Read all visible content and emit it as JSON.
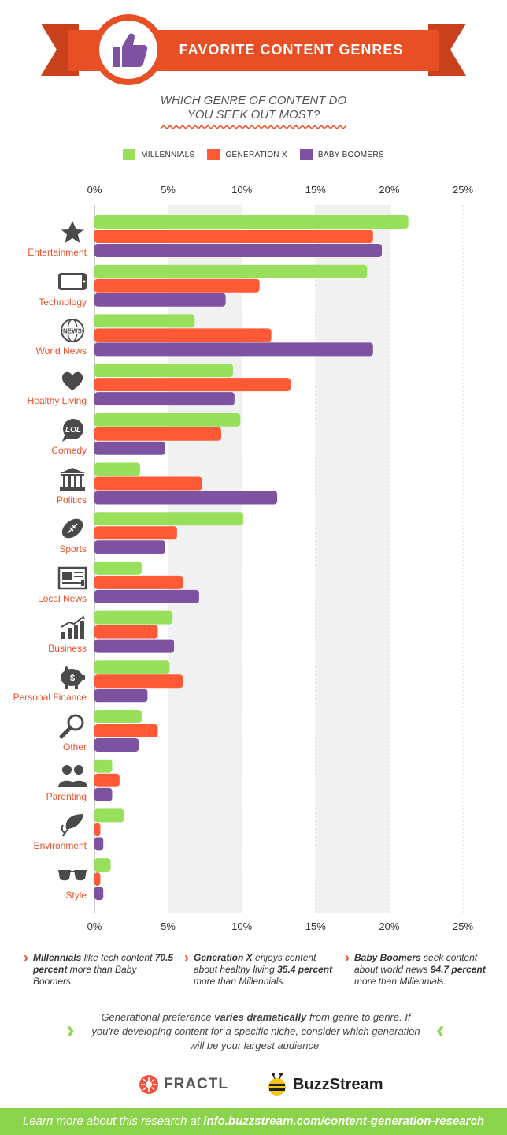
{
  "header": {
    "title": "FAVORITE CONTENT GENRES",
    "subtitle_line1": "WHICH GENRE OF CONTENT DO",
    "subtitle_line2": "YOU SEEK OUT MOST?"
  },
  "colors": {
    "millennials": "#98e05c",
    "generation_x": "#ff5a35",
    "baby_boomers": "#7d52a0",
    "banner": "#e84f25",
    "accent_label": "#e8502a",
    "footer_green": "#8bd34a"
  },
  "chart_data": {
    "type": "bar",
    "orientation": "horizontal",
    "title": "FAVORITE CONTENT GENRES",
    "subtitle": "WHICH GENRE OF CONTENT DO YOU SEEK OUT MOST?",
    "categories": [
      "Entertainment",
      "Technology",
      "World News",
      "Healthy Living",
      "Comedy",
      "Politics",
      "Sports",
      "Local News",
      "Business",
      "Personal Finance",
      "Other",
      "Parenting",
      "Environment",
      "Style"
    ],
    "icons": [
      "star-icon",
      "tablet-icon",
      "globe-news-icon",
      "heart-icon",
      "lol-bubble-icon",
      "capitol-icon",
      "football-icon",
      "newspaper-icon",
      "bar-chart-icon",
      "piggy-bank-icon",
      "magnifier-icon",
      "people-icon",
      "leaf-icon",
      "sunglasses-icon"
    ],
    "series": [
      {
        "name": "MILLENNIALS",
        "values": [
          21.3,
          18.5,
          6.8,
          9.4,
          9.9,
          3.1,
          10.1,
          3.2,
          5.3,
          5.1,
          3.2,
          1.2,
          2.0,
          1.1
        ]
      },
      {
        "name": "GENERATION X",
        "values": [
          18.9,
          11.2,
          12.0,
          13.3,
          8.6,
          7.3,
          5.6,
          6.0,
          4.3,
          6.0,
          4.3,
          1.7,
          0.4,
          0.4
        ]
      },
      {
        "name": "BABY BOOMERS",
        "values": [
          19.5,
          8.9,
          18.9,
          9.5,
          4.8,
          12.4,
          4.8,
          7.1,
          5.4,
          3.6,
          3.0,
          1.2,
          0.6,
          0.6
        ]
      }
    ],
    "xlim": [
      0,
      25
    ],
    "x_ticks": [
      "0%",
      "5%",
      "10%",
      "15%",
      "20%",
      "25%"
    ],
    "legend_position": "top-center",
    "grid": "alternating-vertical-bands"
  },
  "footnotes": [
    {
      "bold": "Millennials",
      "text": " like tech content ",
      "bold2": "70.5 percent",
      "text2": " more than Baby Boomers."
    },
    {
      "bold": "Generation X",
      "text": " enjoys content about healthy living ",
      "bold2": "35.4 percent",
      "text2": " more than Millennials."
    },
    {
      "bold": "Baby Boomers",
      "text": " seek content about world news ",
      "bold2": "94.7 percent",
      "text2": " more than Millennials."
    }
  ],
  "closing": {
    "part1": "Generational preference ",
    "bold": "varies dramatically",
    "part2": " from genre to genre. If you're developing content for a specific niche, consider which generation will be your largest audience."
  },
  "logos": {
    "fractl": "FRACTL",
    "buzzstream": "BuzzStream"
  },
  "footer": {
    "text": "Learn more about this research at ",
    "link": "info.buzzstream.com/content-generation-research"
  }
}
